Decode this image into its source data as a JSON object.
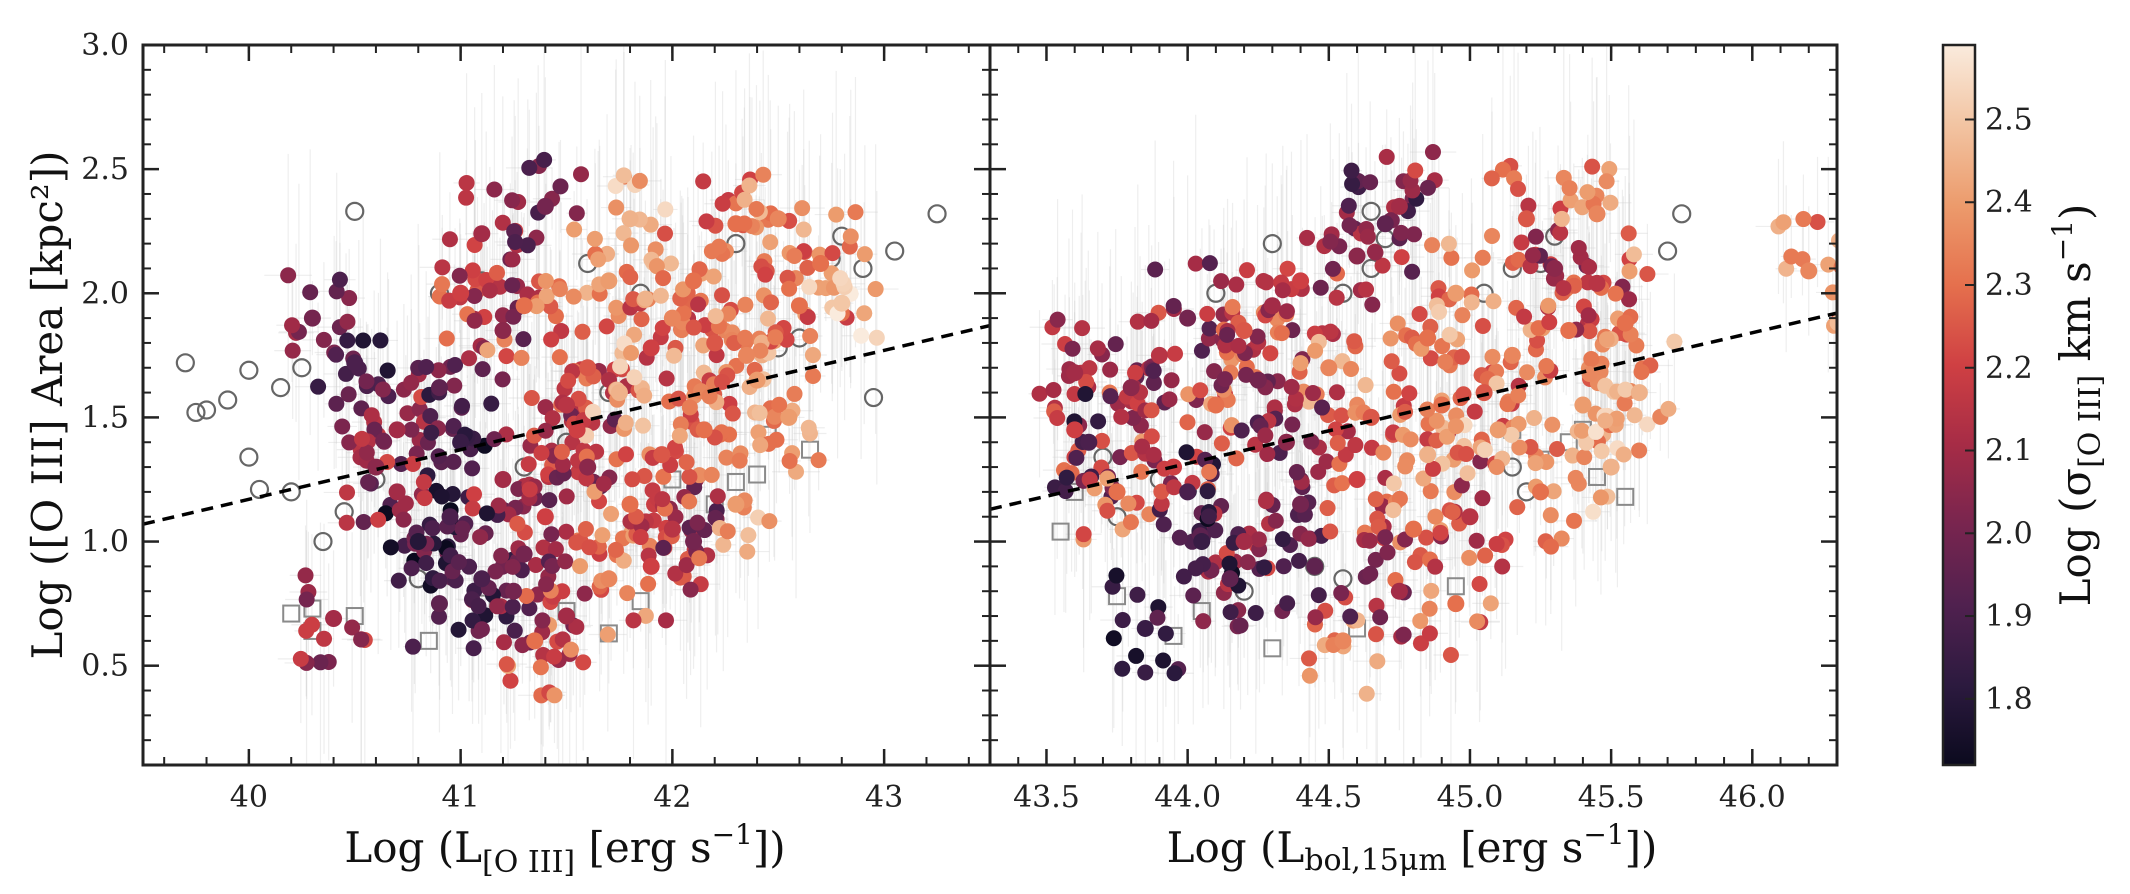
{
  "chart_data": [
    {
      "type": "scatter",
      "panel": "left",
      "xlabel_parts": [
        "Log (L",
        "[O III]",
        " [erg s",
        "−1",
        "])"
      ],
      "ylabel": "Log ([O III] Area [kpc²])",
      "xlim": [
        39.5,
        43.5
      ],
      "ylim": [
        0.1,
        3.0
      ],
      "xticks": [
        40,
        41,
        42,
        43
      ],
      "xtick_labels": [
        "40",
        "41",
        "42",
        "43"
      ],
      "yticks": [
        0.5,
        1.0,
        1.5,
        2.0,
        2.5,
        3.0
      ],
      "ytick_labels": [
        "0.5",
        "1.0",
        "1.5",
        "2.0",
        "2.5",
        "3.0"
      ],
      "fit_line": {
        "x": [
          39.5,
          43.5
        ],
        "y": [
          1.07,
          1.87
        ],
        "style": "dashed"
      },
      "series": [
        {
          "name": "detected",
          "marker": "filled-circle-colored",
          "points": [
            [
              40.3,
              1.9
            ],
            [
              40.5,
              1.72
            ],
            [
              40.7,
              1.45
            ],
            [
              40.9,
              1.62
            ],
            [
              41.0,
              2.0
            ],
            [
              41.1,
              2.24
            ],
            [
              41.2,
              1.85
            ],
            [
              41.3,
              1.95
            ],
            [
              41.4,
              2.35
            ],
            [
              41.5,
              1.55
            ],
            [
              41.6,
              1.7
            ],
            [
              41.7,
              2.05
            ],
            [
              41.8,
              2.3
            ],
            [
              41.9,
              1.78
            ],
            [
              42.0,
              1.9
            ],
            [
              42.1,
              2.05
            ],
            [
              42.2,
              1.8
            ],
            [
              42.3,
              2.28
            ],
            [
              42.4,
              1.65
            ],
            [
              42.5,
              2.3
            ],
            [
              42.6,
              1.95
            ],
            [
              42.7,
              2.12
            ],
            [
              42.8,
              1.96
            ],
            [
              41.0,
              1.4
            ],
            [
              41.2,
              1.25
            ],
            [
              41.4,
              1.1
            ],
            [
              41.6,
              1.3
            ],
            [
              41.8,
              1.15
            ],
            [
              42.0,
              1.05
            ],
            [
              41.1,
              0.85
            ],
            [
              41.3,
              0.95
            ],
            [
              41.5,
              0.7
            ],
            [
              41.7,
              0.85
            ],
            [
              41.9,
              0.9
            ],
            [
              42.1,
              1.0
            ],
            [
              42.3,
              1.15
            ],
            [
              40.4,
              0.69
            ],
            [
              41.35,
              0.6
            ],
            [
              40.8,
              1.0
            ],
            [
              40.6,
              1.3
            ],
            [
              40.9,
              0.75
            ],
            [
              41.25,
              0.8
            ],
            [
              41.55,
              1.45
            ],
            [
              41.75,
              1.6
            ],
            [
              41.95,
              1.35
            ],
            [
              42.15,
              1.45
            ],
            [
              42.35,
              1.75
            ],
            [
              42.55,
              1.5
            ],
            [
              40.7,
              1.2
            ],
            [
              40.95,
              1.1
            ]
          ],
          "color_values": [
            2.0,
            1.9,
            2.1,
            1.95,
            2.2,
            2.1,
            2.05,
            2.3,
            2.0,
            2.15,
            2.25,
            2.4,
            2.45,
            2.2,
            2.35,
            2.3,
            2.25,
            2.3,
            2.4,
            2.35,
            2.3,
            2.3,
            2.5,
            1.85,
            2.1,
            2.2,
            2.05,
            2.3,
            2.15,
            1.9,
            2.0,
            2.1,
            2.35,
            2.2,
            2.0,
            2.4,
            2.1,
            2.3,
            1.8,
            2.05,
            1.95,
            2.0,
            2.2,
            2.45,
            2.25,
            2.3,
            2.35,
            2.4,
            2.1,
            1.9
          ]
        },
        {
          "name": "unresolved-circle",
          "marker": "open-circle-gray",
          "points": [
            [
              39.7,
              1.72
            ],
            [
              39.75,
              1.52
            ],
            [
              39.8,
              1.53
            ],
            [
              39.9,
              1.57
            ],
            [
              40.0,
              1.69
            ],
            [
              40.0,
              1.34
            ],
            [
              40.05,
              1.21
            ],
            [
              40.15,
              1.62
            ],
            [
              40.25,
              1.7
            ],
            [
              40.2,
              1.2
            ],
            [
              40.35,
              1.0
            ],
            [
              40.5,
              2.33
            ],
            [
              40.45,
              1.12
            ],
            [
              40.6,
              1.25
            ],
            [
              40.8,
              0.85
            ],
            [
              40.9,
              2.0
            ],
            [
              41.1,
              2.05
            ],
            [
              41.6,
              2.12
            ],
            [
              41.85,
              2.0
            ],
            [
              42.3,
              2.2
            ],
            [
              42.5,
              1.78
            ],
            [
              42.6,
              1.82
            ],
            [
              42.75,
              2.14
            ],
            [
              42.8,
              2.23
            ],
            [
              42.9,
              2.1
            ],
            [
              43.05,
              2.17
            ],
            [
              43.25,
              2.32
            ],
            [
              42.95,
              1.58
            ],
            [
              41.3,
              1.3
            ],
            [
              41.5,
              1.4
            ],
            [
              41.7,
              1.6
            ]
          ]
        },
        {
          "name": "upper-limit",
          "marker": "open-square-gray",
          "points": [
            [
              40.2,
              0.71
            ],
            [
              40.3,
              0.64
            ],
            [
              40.3,
              0.73
            ],
            [
              40.5,
              0.7
            ],
            [
              40.85,
              0.6
            ],
            [
              41.1,
              0.75
            ],
            [
              41.5,
              0.72
            ],
            [
              41.7,
              0.63
            ],
            [
              41.85,
              0.76
            ],
            [
              42.3,
              1.24
            ],
            [
              42.4,
              1.27
            ],
            [
              42.45,
              1.43
            ],
            [
              42.65,
              1.37
            ],
            [
              42.2,
              1.15
            ],
            [
              42.0,
              1.25
            ]
          ]
        }
      ]
    },
    {
      "type": "scatter",
      "panel": "right",
      "xlabel_parts": [
        "Log (L",
        "bol,15μm",
        " [erg s",
        "−1",
        "])"
      ],
      "xlim": [
        43.3,
        46.3
      ],
      "ylim": [
        0.1,
        3.0
      ],
      "xticks": [
        43.5,
        44.0,
        44.5,
        45.0,
        45.5,
        46.0
      ],
      "xtick_labels": [
        "43.5",
        "44.0",
        "44.5",
        "45.0",
        "45.5",
        "46.0"
      ],
      "fit_line": {
        "x": [
          43.3,
          46.3
        ],
        "y": [
          1.13,
          1.92
        ],
        "style": "dashed"
      },
      "series": [
        {
          "name": "detected",
          "marker": "filled-circle-colored",
          "points": [
            [
              43.6,
              1.68
            ],
            [
              43.6,
              1.45
            ],
            [
              43.65,
              1.4
            ],
            [
              43.75,
              1.2
            ],
            [
              43.8,
              1.62
            ],
            [
              43.85,
              0.65
            ],
            [
              43.9,
              1.75
            ],
            [
              44.0,
              1.9
            ],
            [
              44.1,
              1.55
            ],
            [
              44.2,
              1.85
            ],
            [
              44.3,
              1.95
            ],
            [
              44.4,
              2.05
            ],
            [
              44.5,
              1.7
            ],
            [
              44.6,
              2.15
            ],
            [
              44.7,
              2.28
            ],
            [
              44.75,
              2.35
            ],
            [
              44.85,
              1.82
            ],
            [
              44.95,
              2.0
            ],
            [
              45.05,
              1.6
            ],
            [
              45.15,
              1.75
            ],
            [
              45.2,
              2.3
            ],
            [
              45.25,
              1.2
            ],
            [
              45.3,
              2.1
            ],
            [
              45.35,
              1.85
            ],
            [
              45.4,
              1.55
            ],
            [
              45.45,
              2.04
            ],
            [
              45.45,
              2.32
            ],
            [
              45.5,
              1.3
            ],
            [
              45.6,
              1.6
            ],
            [
              45.55,
              1.88
            ],
            [
              46.2,
              2.09
            ],
            [
              44.0,
              1.2
            ],
            [
              44.2,
              1.0
            ],
            [
              44.4,
              1.15
            ],
            [
              44.6,
              1.25
            ],
            [
              44.8,
              1.05
            ],
            [
              44.95,
              0.75
            ],
            [
              44.55,
              0.6
            ],
            [
              44.15,
              0.85
            ],
            [
              44.35,
              1.4
            ],
            [
              44.65,
              1.5
            ],
            [
              44.85,
              1.35
            ],
            [
              45.0,
              1.1
            ],
            [
              43.95,
              1.3
            ],
            [
              44.25,
              1.65
            ],
            [
              44.45,
              0.9
            ],
            [
              44.75,
              0.8
            ],
            [
              45.1,
              1.45
            ],
            [
              44.05,
              1.0
            ],
            [
              44.9,
              1.55
            ]
          ],
          "color_values": [
            2.1,
            2.2,
            1.9,
            2.3,
            2.05,
            1.85,
            2.15,
            2.0,
            2.3,
            2.25,
            2.1,
            2.2,
            2.35,
            2.05,
            1.95,
            2.1,
            2.3,
            2.4,
            2.25,
            2.35,
            2.25,
            2.3,
            2.05,
            2.3,
            2.4,
            2.15,
            2.35,
            2.45,
            2.45,
            2.3,
            2.35,
            1.9,
            2.1,
            2.0,
            2.2,
            2.3,
            2.3,
            2.35,
            1.95,
            2.05,
            2.25,
            2.45,
            2.15,
            2.2,
            2.0,
            1.95,
            2.1,
            2.4,
            1.85,
            2.3
          ]
        },
        {
          "name": "unresolved-circle",
          "marker": "open-circle-gray",
          "points": [
            [
              43.7,
              1.34
            ],
            [
              43.75,
              1.1
            ],
            [
              43.9,
              1.25
            ],
            [
              44.1,
              2.0
            ],
            [
              44.3,
              2.2
            ],
            [
              44.55,
              2.0
            ],
            [
              44.65,
              2.1
            ],
            [
              44.7,
              2.22
            ],
            [
              44.65,
              2.33
            ],
            [
              45.05,
              2.0
            ],
            [
              45.15,
              2.1
            ],
            [
              45.25,
              2.12
            ],
            [
              45.3,
              2.23
            ],
            [
              45.2,
              1.2
            ],
            [
              45.7,
              2.17
            ],
            [
              45.75,
              2.32
            ],
            [
              44.2,
              0.8
            ],
            [
              44.45,
              0.9
            ],
            [
              44.55,
              0.85
            ],
            [
              45.15,
              1.3
            ]
          ]
        },
        {
          "name": "upper-limit",
          "marker": "open-square-gray",
          "points": [
            [
              43.55,
              1.04
            ],
            [
              43.6,
              1.2
            ],
            [
              43.75,
              0.78
            ],
            [
              43.95,
              0.62
            ],
            [
              44.05,
              0.72
            ],
            [
              44.3,
              0.57
            ],
            [
              44.6,
              0.65
            ],
            [
              44.95,
              0.82
            ],
            [
              45.15,
              1.45
            ],
            [
              45.25,
              1.33
            ],
            [
              45.35,
              1.4
            ],
            [
              45.45,
              1.26
            ],
            [
              45.55,
              1.18
            ],
            [
              45.4,
              1.45
            ]
          ]
        }
      ]
    }
  ],
  "colorbar": {
    "label_parts": [
      "Log (σ",
      "[O III]",
      " km s",
      "−1",
      ")"
    ],
    "vlim": [
      1.72,
      2.59
    ],
    "ticks": [
      1.8,
      1.9,
      2.0,
      2.1,
      2.2,
      2.3,
      2.4,
      2.5
    ],
    "tick_labels": [
      "1.8",
      "1.9",
      "2.0",
      "2.1",
      "2.2",
      "2.3",
      "2.4",
      "2.5"
    ],
    "colormap": [
      "#0b0a1e",
      "#2c1a3f",
      "#50214f",
      "#78254f",
      "#a62c46",
      "#cf4043",
      "#e5704d",
      "#ec9b6c",
      "#f2c4a2",
      "#faebdd"
    ]
  }
}
